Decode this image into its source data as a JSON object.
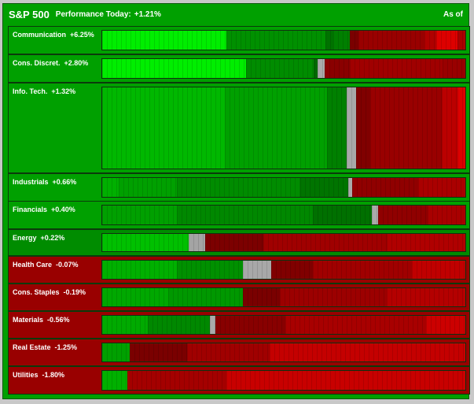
{
  "header": {
    "title": "S&P 500",
    "performance_label": "Performance Today:",
    "performance_value": "+1.21%",
    "as_of_label": "As of"
  },
  "colors": {
    "panel_bg": "#00a000",
    "positive_sector_bg": "#00a000",
    "negative_sector_bg": "#990000",
    "up_strong": "#00ee00",
    "up": "#00b400",
    "up_weak": "#008000",
    "neutral": "#a0a0a0",
    "down_weak": "#880000",
    "down": "#a80000",
    "down_strong": "#ee0000"
  },
  "sectors": [
    {
      "name": "Communication",
      "change": "+6.25%",
      "bg": "#00a000",
      "segments": [
        {
          "w": 150,
          "c": "#00ee00"
        },
        {
          "w": 120,
          "c": "#009000"
        },
        {
          "w": 10,
          "c": "#007200"
        },
        {
          "w": 20,
          "c": "#007f00"
        },
        {
          "w": 10,
          "c": "#7a0000"
        },
        {
          "w": 80,
          "c": "#990000"
        },
        {
          "w": 15,
          "c": "#b00000"
        },
        {
          "w": 25,
          "c": "#dd0000"
        },
        {
          "w": 10,
          "c": "#aa0000"
        }
      ]
    },
    {
      "name": "Cons. Discret.",
      "change": "+2.80%",
      "bg": "#00a000",
      "segments": [
        {
          "w": 170,
          "c": "#00ee00"
        },
        {
          "w": 80,
          "c": "#008c00"
        },
        {
          "w": 5,
          "c": "#006800"
        },
        {
          "w": 8,
          "c": "#aaaaaa"
        },
        {
          "w": 30,
          "c": "#8a0000"
        },
        {
          "w": 110,
          "c": "#a00000"
        },
        {
          "w": 27,
          "c": "#990000"
        }
      ]
    },
    {
      "name": "Info. Tech.",
      "change": "+1.32%",
      "bg": "#00a000",
      "segments": [
        {
          "w": 155,
          "c": "#00b800"
        },
        {
          "w": 130,
          "c": "#00a000"
        },
        {
          "w": 25,
          "c": "#008000"
        },
        {
          "w": 12,
          "c": "#a8a8a8"
        },
        {
          "w": 18,
          "c": "#800000"
        },
        {
          "w": 90,
          "c": "#990000"
        },
        {
          "w": 20,
          "c": "#bb0000"
        },
        {
          "w": 10,
          "c": "#dd0000"
        }
      ]
    },
    {
      "name": "Industrials",
      "change": "+0.66%",
      "bg": "#00a000",
      "segments": [
        {
          "w": 20,
          "c": "#00b000"
        },
        {
          "w": 70,
          "c": "#00a000"
        },
        {
          "w": 150,
          "c": "#008c00"
        },
        {
          "w": 58,
          "c": "#007400"
        },
        {
          "w": 5,
          "c": "#aaaaaa"
        },
        {
          "w": 80,
          "c": "#900000"
        },
        {
          "w": 57,
          "c": "#aa0000"
        }
      ]
    },
    {
      "name": "Financials",
      "change": "+0.40%",
      "bg": "#00a000",
      "segments": [
        {
          "w": 90,
          "c": "#00a000"
        },
        {
          "w": 165,
          "c": "#008800"
        },
        {
          "w": 72,
          "c": "#007000"
        },
        {
          "w": 7,
          "c": "#aaaaaa"
        },
        {
          "w": 60,
          "c": "#900000"
        },
        {
          "w": 46,
          "c": "#a80000"
        }
      ]
    },
    {
      "name": "Energy",
      "change": "+0.22%",
      "bg": "#008c00",
      "segments": [
        {
          "w": 105,
          "c": "#00c000"
        },
        {
          "w": 20,
          "c": "#a4a4a4"
        },
        {
          "w": 70,
          "c": "#7c0000"
        },
        {
          "w": 150,
          "c": "#a00000"
        },
        {
          "w": 95,
          "c": "#b00000"
        }
      ]
    },
    {
      "name": "Health Care",
      "change": "-0.07%",
      "bg": "#990000",
      "segments": [
        {
          "w": 90,
          "c": "#00b000"
        },
        {
          "w": 80,
          "c": "#009000"
        },
        {
          "w": 35,
          "c": "#a8a8a8"
        },
        {
          "w": 50,
          "c": "#800000"
        },
        {
          "w": 120,
          "c": "#a00000"
        },
        {
          "w": 65,
          "c": "#c00000"
        }
      ]
    },
    {
      "name": "Cons. Staples",
      "change": "-0.19%",
      "bg": "#990000",
      "segments": [
        {
          "w": 80,
          "c": "#00a800"
        },
        {
          "w": 90,
          "c": "#009800"
        },
        {
          "w": 45,
          "c": "#7a0000"
        },
        {
          "w": 130,
          "c": "#9c0000"
        },
        {
          "w": 95,
          "c": "#b40000"
        }
      ]
    },
    {
      "name": "Materials",
      "change": "-0.56%",
      "bg": "#990000",
      "segments": [
        {
          "w": 55,
          "c": "#00aa00"
        },
        {
          "w": 75,
          "c": "#008800"
        },
        {
          "w": 7,
          "c": "#aaaaaa"
        },
        {
          "w": 85,
          "c": "#880000"
        },
        {
          "w": 170,
          "c": "#a80000"
        },
        {
          "w": 48,
          "c": "#cc0000"
        }
      ]
    },
    {
      "name": "Real Estate",
      "change": "-1.25%",
      "bg": "#990000",
      "segments": [
        {
          "w": 33,
          "c": "#00a000"
        },
        {
          "w": 70,
          "c": "#7a0000"
        },
        {
          "w": 100,
          "c": "#a00000"
        },
        {
          "w": 237,
          "c": "#c40000"
        }
      ]
    },
    {
      "name": "Utilities",
      "change": "-1.80%",
      "bg": "#990000",
      "segments": [
        {
          "w": 30,
          "c": "#00b000"
        },
        {
          "w": 120,
          "c": "#a40000"
        },
        {
          "w": 290,
          "c": "#c80000"
        }
      ]
    }
  ]
}
